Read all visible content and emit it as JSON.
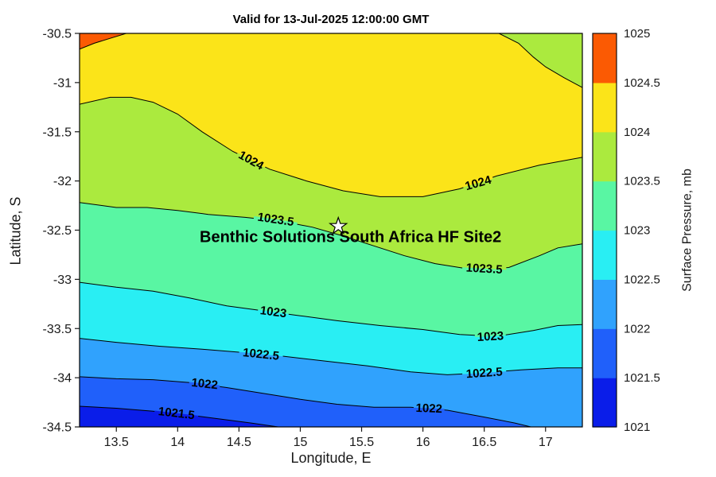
{
  "chart_data": {
    "type": "contour",
    "title": "Valid for 13-Jul-2025 12:00:00 GMT",
    "xlabel": "Longitude, E",
    "ylabel": "Latitude, S",
    "colorbar_label": "Surface Pressure, mb",
    "units": "mb",
    "xlim": [
      13.2,
      17.3
    ],
    "ylim": [
      -34.5,
      -30.5
    ],
    "x_tick_values": [
      13.5,
      14,
      14.5,
      15,
      15.5,
      16,
      16.5,
      17
    ],
    "x_tick_labels": [
      "13.5",
      "14",
      "14.5",
      "15",
      "15.5",
      "16",
      "16.5",
      "17"
    ],
    "y_tick_values": [
      -30.5,
      -31,
      -31.5,
      -32,
      -32.5,
      -33,
      -33.5,
      -34,
      -34.5
    ],
    "y_tick_labels": [
      "-30.5",
      "-31",
      "-31.5",
      "-32",
      "-32.5",
      "-33",
      "-33.5",
      "-34",
      "-34.5"
    ],
    "colorbar_tick_labels": [
      "1025",
      "1024.5",
      "1024",
      "1023.5",
      "1023",
      "1022.5",
      "1022",
      "1021.5",
      "1021"
    ],
    "levels_mb": [
      1021.5,
      1022,
      1022.5,
      1023,
      1023.5,
      1024,
      1024.5
    ],
    "base_band": 6,
    "bands": [
      {
        "range": [
          1021,
          1021.5
        ],
        "color": "#0a1de9"
      },
      {
        "range": [
          1021.5,
          1022
        ],
        "color": "#2060fa"
      },
      {
        "range": [
          1022,
          1022.5
        ],
        "color": "#30a2fd"
      },
      {
        "range": [
          1022.5,
          1023
        ],
        "color": "#29eef3"
      },
      {
        "range": [
          1023,
          1023.5
        ],
        "color": "#59f6a3"
      },
      {
        "range": [
          1023.5,
          1024
        ],
        "color": "#abea3e"
      },
      {
        "range": [
          1024,
          1024.5
        ],
        "color": "#fbe419"
      },
      {
        "range": [
          1024.5,
          1025
        ],
        "color": "#fb5a03"
      }
    ],
    "contours": [
      {
        "level": 1024.5,
        "label_text": "1024.5",
        "fill_band": 7,
        "points": [
          [
            13.2,
            -30.66
          ],
          [
            13.32,
            -30.6
          ],
          [
            13.45,
            -30.55
          ],
          [
            13.58,
            -30.5
          ]
        ],
        "close_points": [
          [
            13.2,
            -30.5
          ]
        ],
        "labels": []
      },
      {
        "level": 1024,
        "label_text": "1024",
        "fill_band": 5,
        "points": [
          [
            16.62,
            -30.5
          ],
          [
            16.78,
            -30.6
          ],
          [
            16.9,
            -30.74
          ],
          [
            17.0,
            -30.84
          ],
          [
            17.15,
            -30.95
          ],
          [
            17.3,
            -31.05
          ]
        ],
        "close_points": [
          [
            17.3,
            -30.5
          ]
        ],
        "labels": []
      },
      {
        "level": 1024,
        "label_text": "1024",
        "fill_band": 5,
        "points": [
          [
            13.2,
            -31.22
          ],
          [
            13.45,
            -31.15
          ],
          [
            13.62,
            -31.15
          ],
          [
            13.8,
            -31.2
          ],
          [
            14.0,
            -31.32
          ],
          [
            14.2,
            -31.5
          ],
          [
            14.45,
            -31.7
          ],
          [
            14.75,
            -31.88
          ],
          [
            15.05,
            -32.0
          ],
          [
            15.35,
            -32.1
          ],
          [
            15.65,
            -32.16
          ],
          [
            16.0,
            -32.16
          ],
          [
            16.3,
            -32.08
          ],
          [
            16.6,
            -31.95
          ],
          [
            16.95,
            -31.84
          ],
          [
            17.3,
            -31.76
          ]
        ],
        "close_points": [
          [
            17.3,
            -34.5
          ],
          [
            13.2,
            -34.5
          ]
        ],
        "labels": [
          [
            14.6,
            -31.79
          ],
          [
            16.45,
            -32.02
          ]
        ]
      },
      {
        "level": 1023.5,
        "label_text": "1023.5",
        "fill_band": 4,
        "points": [
          [
            13.2,
            -32.22
          ],
          [
            13.5,
            -32.27
          ],
          [
            13.75,
            -32.27
          ],
          [
            14.0,
            -32.3
          ],
          [
            14.25,
            -32.34
          ],
          [
            14.55,
            -32.37
          ],
          [
            14.85,
            -32.41
          ],
          [
            15.1,
            -32.47
          ],
          [
            15.35,
            -32.56
          ],
          [
            15.6,
            -32.66
          ],
          [
            15.85,
            -32.76
          ],
          [
            16.1,
            -32.84
          ],
          [
            16.4,
            -32.9
          ],
          [
            16.7,
            -32.88
          ],
          [
            16.95,
            -32.76
          ],
          [
            17.1,
            -32.68
          ],
          [
            17.3,
            -32.64
          ]
        ],
        "close_points": [
          [
            17.3,
            -34.5
          ],
          [
            13.2,
            -34.5
          ]
        ],
        "labels": [
          [
            14.8,
            -32.39
          ],
          [
            16.5,
            -32.89
          ]
        ]
      },
      {
        "level": 1023,
        "label_text": "1023",
        "fill_band": 3,
        "points": [
          [
            13.2,
            -33.03
          ],
          [
            13.5,
            -33.08
          ],
          [
            13.8,
            -33.12
          ],
          [
            14.1,
            -33.19
          ],
          [
            14.4,
            -33.27
          ],
          [
            14.7,
            -33.32
          ],
          [
            15.0,
            -33.37
          ],
          [
            15.3,
            -33.42
          ],
          [
            15.65,
            -33.47
          ],
          [
            16.0,
            -33.51
          ],
          [
            16.3,
            -33.56
          ],
          [
            16.6,
            -33.58
          ],
          [
            16.9,
            -33.52
          ],
          [
            17.1,
            -33.47
          ],
          [
            17.3,
            -33.46
          ]
        ],
        "close_points": [
          [
            17.3,
            -34.5
          ],
          [
            13.2,
            -34.5
          ]
        ],
        "labels": [
          [
            14.78,
            -33.33
          ],
          [
            16.55,
            -33.58
          ]
        ]
      },
      {
        "level": 1022.5,
        "label_text": "1022.5",
        "fill_band": 2,
        "points": [
          [
            13.2,
            -33.6
          ],
          [
            13.5,
            -33.64
          ],
          [
            13.85,
            -33.68
          ],
          [
            14.2,
            -33.71
          ],
          [
            14.5,
            -33.74
          ],
          [
            14.85,
            -33.78
          ],
          [
            15.2,
            -33.83
          ],
          [
            15.55,
            -33.88
          ],
          [
            15.9,
            -33.94
          ],
          [
            16.2,
            -33.97
          ],
          [
            16.5,
            -33.95
          ],
          [
            16.8,
            -33.92
          ],
          [
            17.1,
            -33.9
          ],
          [
            17.3,
            -33.9
          ]
        ],
        "close_points": [
          [
            17.3,
            -34.5
          ],
          [
            13.2,
            -34.5
          ]
        ],
        "labels": [
          [
            14.68,
            -33.76
          ],
          [
            16.5,
            -33.95
          ]
        ]
      },
      {
        "level": 1022,
        "label_text": "1022",
        "fill_band": 1,
        "points": [
          [
            13.2,
            -33.99
          ],
          [
            13.5,
            -34.01
          ],
          [
            13.8,
            -34.02
          ],
          [
            14.1,
            -34.05
          ],
          [
            14.4,
            -34.1
          ],
          [
            14.7,
            -34.16
          ],
          [
            15.0,
            -34.22
          ],
          [
            15.3,
            -34.27
          ],
          [
            15.6,
            -34.3
          ],
          [
            15.9,
            -34.3
          ],
          [
            16.2,
            -34.33
          ],
          [
            16.5,
            -34.4
          ],
          [
            16.75,
            -34.46
          ],
          [
            16.88,
            -34.5
          ]
        ],
        "close_points": [
          [
            13.2,
            -34.5
          ]
        ],
        "labels": [
          [
            14.22,
            -34.06
          ],
          [
            16.05,
            -34.31
          ]
        ]
      },
      {
        "level": 1021.5,
        "label_text": "1021.5",
        "fill_band": 0,
        "points": [
          [
            13.2,
            -34.29
          ],
          [
            13.5,
            -34.31
          ],
          [
            13.8,
            -34.34
          ],
          [
            14.1,
            -34.38
          ],
          [
            14.35,
            -34.42
          ],
          [
            14.6,
            -34.46
          ],
          [
            14.82,
            -34.5
          ]
        ],
        "close_points": [
          [
            13.2,
            -34.5
          ]
        ],
        "labels": [
          [
            13.99,
            -34.36
          ]
        ]
      }
    ],
    "marker": {
      "shape": "star",
      "lon": 15.31,
      "lat": -32.46,
      "fill": "#ffffff"
    },
    "annotation": {
      "text": "Benthic Solutions South Africa HF Site2",
      "lon": 15.41,
      "lat": -32.62
    },
    "layout": {
      "grid": false,
      "frame": true,
      "colorbar_position": "right",
      "background": "#ffffff"
    }
  }
}
